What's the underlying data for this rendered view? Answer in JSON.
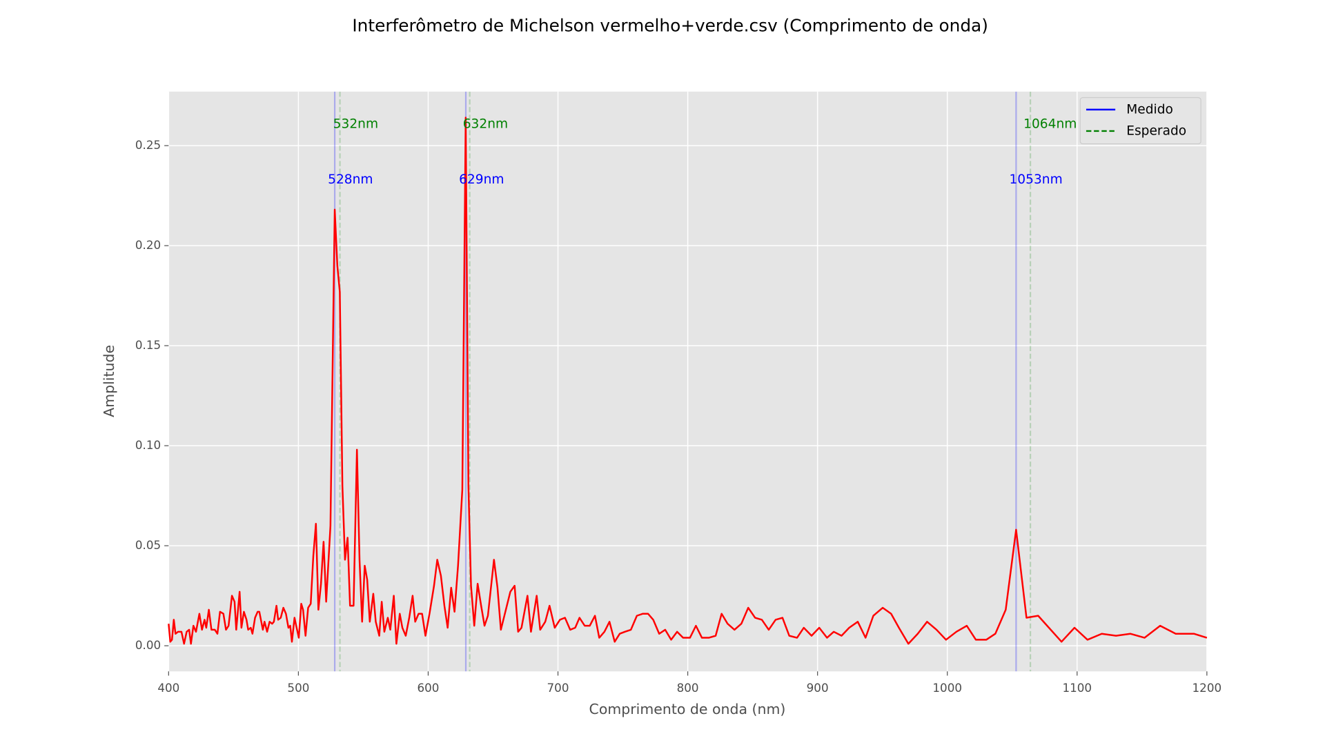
{
  "chart_data": {
    "type": "line",
    "title": "Interferômetro de Michelson vermelho+verde.csv (Comprimento de onda)",
    "x_label": "Comprimento de onda (nm)",
    "y_label": "Amplitude",
    "xlim": [
      400,
      1200
    ],
    "ylim": [
      -0.0128,
      0.277
    ],
    "xticks": [
      400,
      500,
      600,
      700,
      800,
      900,
      1000,
      1100,
      1200
    ],
    "yticks": [
      {
        "value": 0,
        "label": "0.00"
      },
      0.05,
      {
        "value": 0.1,
        "label": "0.10"
      },
      0.15,
      {
        "value": 0.2,
        "label": "0.20"
      },
      0.25
    ],
    "grid": true,
    "x": [
      400.0,
      401.3,
      402.6,
      404.0,
      405.3,
      407.3,
      409.9,
      411.9,
      413.9,
      415.8,
      417.2,
      419.1,
      421.1,
      423.7,
      425.7,
      427.7,
      429.0,
      431.0,
      433.0,
      435.6,
      437.6,
      439.6,
      442.2,
      444.2,
      446.2,
      448.8,
      450.8,
      452.1,
      454.7,
      456.1,
      458.0,
      460.0,
      461.3,
      463.3,
      464.6,
      466.6,
      468.6,
      469.9,
      472.6,
      473.9,
      475.9,
      477.8,
      479.8,
      481.1,
      483.1,
      484.4,
      486.4,
      488.4,
      490.4,
      492.3,
      493.7,
      495.0,
      497.0,
      498.3,
      500.3,
      502.2,
      503.6,
      505.5,
      507.5,
      509.5,
      511.5,
      513.5,
      515.4,
      517.4,
      519.4,
      521.4,
      523.4,
      524.7,
      528.0,
      530.0,
      531.9,
      533.9,
      535.9,
      537.9,
      539.8,
      542.5,
      545.1,
      547.1,
      549.1,
      551.1,
      553.0,
      555.0,
      557.7,
      559.6,
      562.3,
      564.2,
      566.2,
      568.9,
      570.8,
      573.5,
      575.5,
      578.1,
      580.1,
      582.7,
      585.4,
      588.0,
      590.0,
      592.6,
      595.3,
      597.9,
      601.0,
      604.5,
      607.0,
      609.8,
      612.5,
      615.0,
      617.7,
      620.3,
      623.0,
      626.3,
      628.9,
      631.0,
      633.0,
      635.5,
      638.1,
      640.8,
      643.4,
      646.0,
      650.7,
      653.4,
      656.0,
      658.7,
      663.3,
      666.6,
      669.3,
      671.9,
      676.5,
      679.2,
      683.6,
      686.3,
      690.2,
      693.5,
      697.5,
      701.5,
      705.4,
      709.4,
      713.3,
      716.6,
      720.6,
      724.5,
      728.5,
      731.8,
      735.8,
      739.7,
      743.7,
      747.6,
      751.6,
      756.2,
      760.8,
      765.4,
      769.4,
      773.4,
      778.0,
      782.6,
      787.2,
      791.8,
      796.4,
      801.7,
      806.3,
      810.9,
      816.2,
      821.5,
      826.1,
      830.7,
      836.0,
      841.3,
      846.6,
      851.9,
      857.1,
      862.4,
      867.7,
      873.0,
      878.2,
      884.2,
      889.4,
      895.4,
      901.3,
      907.3,
      912.5,
      918.5,
      924.4,
      931.0,
      937.0,
      943.0,
      950.2,
      956.7,
      962.7,
      970.0,
      977.2,
      984.4,
      991.7,
      999.0,
      1007,
      1015,
      1022,
      1030,
      1037,
      1045,
      1053,
      1061,
      1070,
      1088,
      1098,
      1108,
      1119,
      1130,
      1141,
      1152,
      1164,
      1176,
      1190,
      1200
    ],
    "series": [
      {
        "color": "#ff0000",
        "values": [
          0.011,
          0.002,
          0.003,
          0.013,
          0.006,
          0.007,
          0.007,
          0.001,
          0.007,
          0.008,
          0.001,
          0.01,
          0.007,
          0.016,
          0.008,
          0.013,
          0.009,
          0.018,
          0.008,
          0.008,
          0.006,
          0.017,
          0.016,
          0.008,
          0.01,
          0.025,
          0.022,
          0.008,
          0.027,
          0.009,
          0.017,
          0.013,
          0.008,
          0.009,
          0.006,
          0.014,
          0.017,
          0.017,
          0.008,
          0.012,
          0.007,
          0.012,
          0.011,
          0.012,
          0.02,
          0.013,
          0.014,
          0.019,
          0.016,
          0.009,
          0.01,
          0.002,
          0.014,
          0.01,
          0.004,
          0.021,
          0.018,
          0.005,
          0.019,
          0.021,
          0.045,
          0.061,
          0.018,
          0.031,
          0.052,
          0.022,
          0.045,
          0.06,
          0.218,
          0.19,
          0.177,
          0.08,
          0.043,
          0.054,
          0.02,
          0.02,
          0.098,
          0.043,
          0.012,
          0.04,
          0.033,
          0.012,
          0.026,
          0.012,
          0.005,
          0.022,
          0.007,
          0.014,
          0.008,
          0.025,
          0.001,
          0.016,
          0.009,
          0.005,
          0.014,
          0.025,
          0.012,
          0.016,
          0.016,
          0.005,
          0.016,
          0.03,
          0.043,
          0.035,
          0.02,
          0.009,
          0.029,
          0.017,
          0.04,
          0.078,
          0.264,
          0.08,
          0.03,
          0.01,
          0.031,
          0.02,
          0.01,
          0.015,
          0.043,
          0.029,
          0.008,
          0.015,
          0.027,
          0.03,
          0.007,
          0.009,
          0.025,
          0.007,
          0.025,
          0.008,
          0.012,
          0.02,
          0.009,
          0.013,
          0.014,
          0.008,
          0.009,
          0.014,
          0.01,
          0.01,
          0.015,
          0.004,
          0.007,
          0.012,
          0.002,
          0.006,
          0.007,
          0.008,
          0.015,
          0.016,
          0.016,
          0.013,
          0.006,
          0.008,
          0.003,
          0.007,
          0.004,
          0.004,
          0.01,
          0.004,
          0.004,
          0.005,
          0.016,
          0.011,
          0.008,
          0.011,
          0.019,
          0.014,
          0.013,
          0.008,
          0.013,
          0.014,
          0.005,
          0.004,
          0.009,
          0.005,
          0.009,
          0.004,
          0.007,
          0.005,
          0.009,
          0.012,
          0.004,
          0.015,
          0.019,
          0.016,
          0.009,
          0.001,
          0.006,
          0.012,
          0.008,
          0.003,
          0.007,
          0.01,
          0.003,
          0.003,
          0.006,
          0.018,
          0.058,
          0.014,
          0.015,
          0.002,
          0.009,
          0.003,
          0.006,
          0.005,
          0.006,
          0.004,
          0.01,
          0.006,
          0.006,
          0.004
        ]
      }
    ],
    "vlines": [
      {
        "name": "Medido",
        "color": "#0000ff",
        "dash": false,
        "values": [
          528,
          629,
          1053
        ],
        "value_labels": [
          "528nm",
          "629nm",
          "1053nm"
        ]
      },
      {
        "name": "Esperado",
        "color": "#008000",
        "dash": true,
        "values": [
          532,
          632,
          1064
        ],
        "value_labels": [
          "532nm",
          "632nm",
          "1064nm"
        ]
      }
    ],
    "legend": "upper right"
  }
}
